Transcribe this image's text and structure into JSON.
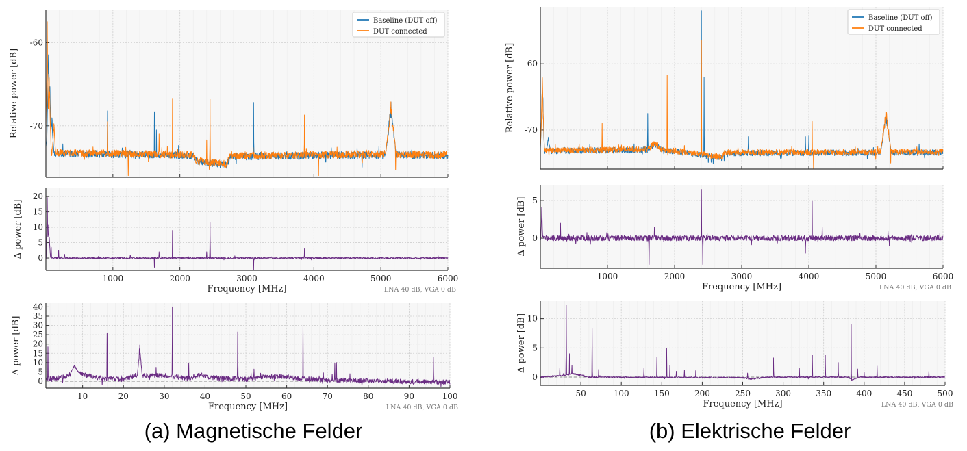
{
  "captions": {
    "a": "(a) Magnetische Felder",
    "b": "(b) Elektrische Felder"
  },
  "chart_data": [
    {
      "id": "a_top",
      "type": "line",
      "xlabel": "",
      "ylabel": "Relative power [dB]",
      "xlim": [
        0,
        6000
      ],
      "ylim": [
        -76.2,
        -56
      ],
      "xticks": [
        1000,
        2000,
        3000,
        4000,
        5000,
        6000
      ],
      "xticklabels": false,
      "yticks": [
        -60,
        -70
      ],
      "grid": true,
      "legend": "top-right",
      "series": [
        {
          "name": "Baseline (DUT off)",
          "color": "#1f77b4",
          "noise": 0.45,
          "floor": [
            [
              0,
              -73.3
            ],
            [
              2200,
              -73.6
            ],
            [
              2250,
              -74.3
            ],
            [
              2700,
              -74.7
            ],
            [
              2750,
              -73.7
            ],
            [
              5000,
              -73.5
            ],
            [
              6000,
              -73.6
            ]
          ],
          "spikes": [
            [
              10,
              -71.5,
              20
            ],
            [
              40,
              -60,
              30
            ],
            [
              60,
              -64,
              20
            ],
            [
              90,
              -68.5,
              30
            ],
            [
              920,
              -68.2
            ],
            [
              1620,
              -68.3
            ],
            [
              1650,
              -70.5
            ],
            [
              3100,
              -67.2
            ],
            [
              4720,
              -75
            ],
            [
              5150,
              -67,
              80
            ]
          ]
        },
        {
          "name": "DUT connected",
          "color": "#ff7f0e",
          "noise": 0.45,
          "floor": [
            [
              0,
              -73.2
            ],
            [
              2200,
              -73.5
            ],
            [
              2250,
              -74.2
            ],
            [
              2700,
              -74.6
            ],
            [
              2750,
              -73.6
            ],
            [
              5000,
              -73.4
            ],
            [
              6000,
              -73.5
            ]
          ],
          "spikes": [
            [
              20,
              -56.5,
              25
            ],
            [
              50,
              -63,
              30
            ],
            [
              120,
              -69.5,
              25
            ],
            [
              920,
              -69.5
            ],
            [
              1230,
              -76
            ],
            [
              1690,
              -71
            ],
            [
              1890,
              -66.7
            ],
            [
              2400,
              -71.7
            ],
            [
              2450,
              -66.8
            ],
            [
              3860,
              -68.7
            ],
            [
              4070,
              -76
            ],
            [
              5150,
              -67,
              80
            ],
            [
              5220,
              -75.3
            ]
          ]
        }
      ]
    },
    {
      "id": "a_mid",
      "type": "line",
      "xlabel": "Frequency [MHz]",
      "ylabel": "Δ power [dB]",
      "note": "LNA 40 dB, VGA 0 dB",
      "xlim": [
        0,
        6000
      ],
      "ylim": [
        -4,
        22.7
      ],
      "xticks": [
        1000,
        2000,
        3000,
        4000,
        5000,
        6000
      ],
      "xticklabels": true,
      "yticks": [
        0,
        5,
        10,
        15,
        20
      ],
      "grid": true,
      "series": [
        {
          "color": "#6a2c83",
          "noise": 0.25,
          "floor": [
            [
              0,
              0
            ],
            [
              6000,
              0
            ]
          ],
          "spikes": [
            [
              20,
              22,
              15
            ],
            [
              40,
              11,
              30
            ],
            [
              80,
              3.5
            ],
            [
              190,
              2.5
            ],
            [
              280,
              1.2
            ],
            [
              1260,
              1
            ],
            [
              1620,
              -3
            ],
            [
              1690,
              2
            ],
            [
              1890,
              9
            ],
            [
              2400,
              2
            ],
            [
              2450,
              11.5
            ],
            [
              3100,
              -4
            ],
            [
              3860,
              3
            ]
          ]
        }
      ]
    },
    {
      "id": "a_bot",
      "type": "line",
      "xlabel": "Frequency [MHz]",
      "ylabel": "Δ power [dB]",
      "note": "LNA 40 dB, VGA 0 dB",
      "xlim": [
        1,
        100
      ],
      "ylim": [
        -3.7,
        42
      ],
      "xticks": [
        10,
        20,
        30,
        40,
        50,
        60,
        70,
        80,
        90,
        100
      ],
      "xticklabels": true,
      "yticks": [
        0,
        5,
        10,
        15,
        20,
        25,
        30,
        35,
        40
      ],
      "grid": true,
      "zero_line": true,
      "series": [
        {
          "color": "#6a2c83",
          "noise": 1.3,
          "floor": [
            [
              1,
              1
            ],
            [
              6,
              2.5
            ],
            [
              8,
              5
            ],
            [
              11,
              3
            ],
            [
              15,
              1.5
            ],
            [
              20,
              1
            ],
            [
              23,
              3
            ],
            [
              26,
              3
            ],
            [
              30,
              3
            ],
            [
              34,
              2
            ],
            [
              36,
              1.5
            ],
            [
              39,
              3.5
            ],
            [
              41,
              2
            ],
            [
              50,
              1
            ],
            [
              55,
              2.5
            ],
            [
              60,
              2.5
            ],
            [
              63,
              1.5
            ],
            [
              70,
              0.5
            ],
            [
              80,
              0.2
            ],
            [
              90,
              -0.3
            ],
            [
              100,
              -0.5
            ]
          ],
          "spikes": [
            [
              1.5,
              18.5
            ],
            [
              8,
              9,
              1
            ],
            [
              16,
              26
            ],
            [
              24,
              20,
              0.6
            ],
            [
              28,
              7.5
            ],
            [
              32,
              40
            ],
            [
              36,
              9.5
            ],
            [
              48,
              26.5
            ],
            [
              52,
              6.5
            ],
            [
              64,
              31
            ],
            [
              69,
              4.5
            ],
            [
              71.8,
              9.5
            ],
            [
              72.2,
              10
            ],
            [
              75.5,
              4
            ],
            [
              96,
              13
            ]
          ]
        }
      ]
    },
    {
      "id": "b_top",
      "type": "line",
      "xlabel": "",
      "ylabel": "Relative power [dB]",
      "xlim": [
        0,
        6000
      ],
      "ylim": [
        -75.9,
        -51.4
      ],
      "xticks": [
        1000,
        2000,
        3000,
        4000,
        5000,
        6000
      ],
      "xticklabels": false,
      "yticks": [
        -60,
        -70
      ],
      "grid": true,
      "legend": "top-right",
      "series": [
        {
          "name": "Baseline (DUT off)",
          "color": "#1f77b4",
          "noise": 0.45,
          "floor": [
            [
              0,
              -73.2
            ],
            [
              1600,
              -73
            ],
            [
              1700,
              -72
            ],
            [
              1800,
              -73
            ],
            [
              2200,
              -73.5
            ],
            [
              2700,
              -74.2
            ],
            [
              2750,
              -73.5
            ],
            [
              6000,
              -73.4
            ]
          ],
          "spikes": [
            [
              30,
              -62,
              30
            ],
            [
              120,
              -71,
              30
            ],
            [
              1600,
              -67.5
            ],
            [
              2400,
              -52
            ],
            [
              2440,
              -62
            ],
            [
              3100,
              -71
            ],
            [
              3950,
              -71
            ],
            [
              4000,
              -70.8
            ],
            [
              5150,
              -67,
              80
            ]
          ]
        },
        {
          "name": "DUT connected",
          "color": "#ff7f0e",
          "noise": 0.45,
          "floor": [
            [
              0,
              -73.1
            ],
            [
              1600,
              -72.9
            ],
            [
              1700,
              -72
            ],
            [
              1800,
              -72.9
            ],
            [
              2200,
              -73.4
            ],
            [
              2700,
              -74.1
            ],
            [
              2750,
              -73.4
            ],
            [
              6000,
              -73.3
            ]
          ],
          "spikes": [
            [
              30,
              -61.5,
              30
            ],
            [
              920,
              -69
            ],
            [
              1890,
              -61.7
            ],
            [
              2400,
              -56.5
            ],
            [
              4050,
              -68.7
            ],
            [
              4070,
              -75.9
            ],
            [
              5150,
              -66.5,
              80
            ],
            [
              5220,
              -75
            ]
          ]
        }
      ]
    },
    {
      "id": "b_mid",
      "type": "line",
      "xlabel": "Frequency [MHz]",
      "ylabel": "Δ power [dB]",
      "note": "LNA 40 dB, VGA 0 dB",
      "xlim": [
        0,
        6000
      ],
      "ylim": [
        -4,
        7.1
      ],
      "xticks": [
        1000,
        2000,
        3000,
        4000,
        5000,
        6000
      ],
      "xticklabels": true,
      "yticks": [
        0,
        5
      ],
      "grid": true,
      "series": [
        {
          "color": "#6a2c83",
          "noise": 0.35,
          "floor": [
            [
              0,
              0
            ],
            [
              6000,
              0
            ]
          ],
          "spikes": [
            [
              20,
              4.5,
              15
            ],
            [
              300,
              2
            ],
            [
              1620,
              -3.5
            ],
            [
              1700,
              1.5
            ],
            [
              2400,
              6.5
            ],
            [
              2420,
              -3.5
            ],
            [
              3950,
              -2
            ],
            [
              4050,
              5
            ],
            [
              4200,
              1.5
            ],
            [
              5180,
              1
            ],
            [
              5200,
              -1
            ]
          ]
        }
      ]
    },
    {
      "id": "b_bot",
      "type": "line",
      "xlabel": "Frequency [MHz]",
      "ylabel": "Δ power [dB]",
      "note": "LNA 40 dB, VGA 0 dB",
      "xlim": [
        0,
        500
      ],
      "ylim": [
        -1.4,
        13
      ],
      "xticks": [
        50,
        100,
        150,
        200,
        250,
        300,
        350,
        400,
        450,
        500
      ],
      "xticklabels": true,
      "yticks": [
        0,
        5,
        10
      ],
      "grid": true,
      "zero_line": true,
      "series": [
        {
          "color": "#6a2c83",
          "noise": 0.12,
          "floor": [
            [
              0,
              0
            ],
            [
              30,
              0.3
            ],
            [
              40,
              0.6
            ],
            [
              60,
              0
            ],
            [
              250,
              -0.1
            ],
            [
              260,
              -0.3
            ],
            [
              280,
              0
            ],
            [
              380,
              0
            ],
            [
              385,
              -0.5
            ],
            [
              395,
              0
            ],
            [
              500,
              0
            ]
          ],
          "spikes": [
            [
              24,
              1.6
            ],
            [
              32,
              12.3
            ],
            [
              36,
              4
            ],
            [
              39,
              2
            ],
            [
              64,
              8.3
            ],
            [
              72,
              1.3
            ],
            [
              128,
              1.5
            ],
            [
              144,
              3.4
            ],
            [
              156,
              4.9
            ],
            [
              160,
              2
            ],
            [
              168,
              1
            ],
            [
              178,
              1.2
            ],
            [
              192,
              1.1
            ],
            [
              256,
              0.7
            ],
            [
              288,
              3.3
            ],
            [
              320,
              1.5
            ],
            [
              336,
              3.8
            ],
            [
              352,
              3.8
            ],
            [
              368,
              2.5
            ],
            [
              384,
              9
            ],
            [
              392,
              1.4
            ],
            [
              400,
              0.9
            ],
            [
              416,
              1.9
            ],
            [
              480,
              1
            ]
          ]
        }
      ]
    }
  ]
}
